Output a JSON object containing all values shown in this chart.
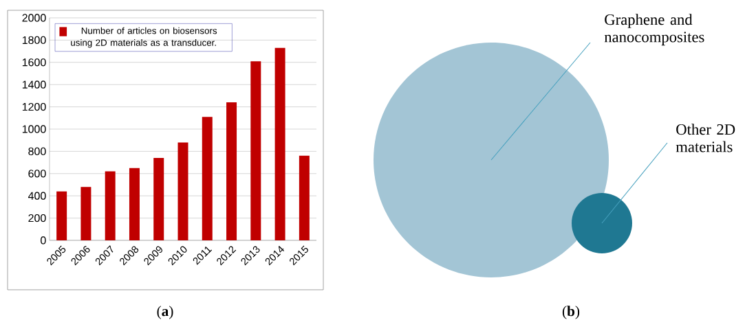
{
  "chart_data": [
    {
      "type": "bar",
      "categories": [
        "2005",
        "2006",
        "2007",
        "2008",
        "2009",
        "2010",
        "2011",
        "2012",
        "2013",
        "2014",
        "2015"
      ],
      "series": [
        {
          "name": "Number of articles on biosensors using 2D materials as a transducer.",
          "color": "#c00000",
          "values": [
            440,
            480,
            620,
            650,
            740,
            880,
            1110,
            1240,
            1610,
            1730,
            760
          ]
        }
      ],
      "ylim": [
        0,
        2000
      ],
      "yticks": [
        0,
        200,
        400,
        600,
        800,
        1000,
        1200,
        1400,
        1600,
        1800,
        2000
      ],
      "grid": "y",
      "legend": "top left",
      "annotations": [
        "(**a**)"
      ]
    },
    {
      "type": "other",
      "categories": [
        "Graphene and nanocomposites",
        "Other 2D materials"
      ],
      "colors": [
        "#a3c5d5",
        "#1f7892"
      ],
      "annotations": [
        "(**b**)"
      ]
    }
  ]
}
